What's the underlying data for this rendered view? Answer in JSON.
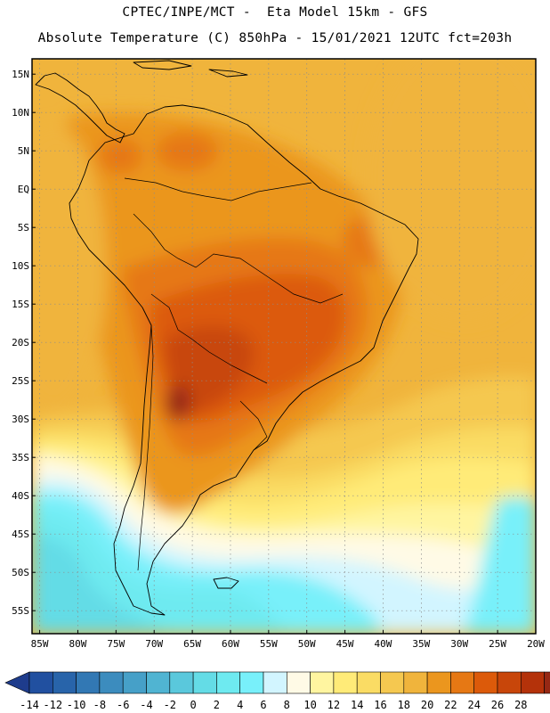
{
  "header": {
    "line1": "CPTEC/INPE/MCT -  Eta Model 15km - GFS",
    "line2": "Absolute Temperature (C) 850hPa - 15/01/2021 12UTC fct=203h"
  },
  "map": {
    "lon_range": [
      -86,
      -20
    ],
    "lat_range": [
      -58,
      17
    ],
    "lon_ticks": [
      {
        "value": -85,
        "label": "85W"
      },
      {
        "value": -80,
        "label": "80W"
      },
      {
        "value": -75,
        "label": "75W"
      },
      {
        "value": -70,
        "label": "70W"
      },
      {
        "value": -65,
        "label": "65W"
      },
      {
        "value": -60,
        "label": "60W"
      },
      {
        "value": -55,
        "label": "55W"
      },
      {
        "value": -50,
        "label": "50W"
      },
      {
        "value": -45,
        "label": "45W"
      },
      {
        "value": -40,
        "label": "40W"
      },
      {
        "value": -35,
        "label": "35W"
      },
      {
        "value": -30,
        "label": "30W"
      },
      {
        "value": -25,
        "label": "25W"
      },
      {
        "value": -20,
        "label": "20W"
      }
    ],
    "lat_ticks": [
      {
        "value": 15,
        "label": "15N"
      },
      {
        "value": 10,
        "label": "10N"
      },
      {
        "value": 5,
        "label": "5N"
      },
      {
        "value": 0,
        "label": "EQ"
      },
      {
        "value": -5,
        "label": "5S"
      },
      {
        "value": -10,
        "label": "10S"
      },
      {
        "value": -15,
        "label": "15S"
      },
      {
        "value": -20,
        "label": "20S"
      },
      {
        "value": -25,
        "label": "25S"
      },
      {
        "value": -30,
        "label": "30S"
      },
      {
        "value": -35,
        "label": "35S"
      },
      {
        "value": -40,
        "label": "40S"
      },
      {
        "value": -45,
        "label": "45S"
      },
      {
        "value": -50,
        "label": "50S"
      },
      {
        "value": -55,
        "label": "55S"
      }
    ]
  },
  "colorbar": {
    "units": "C",
    "labels": [
      "-14",
      "-12",
      "-10",
      "-8",
      "-6",
      "-4",
      "-2",
      "0",
      "2",
      "4",
      "6",
      "8",
      "10",
      "12",
      "14",
      "16",
      "18",
      "20",
      "22",
      "24",
      "26",
      "28"
    ],
    "colors": [
      "#1e3c8c",
      "#2150a0",
      "#2864aa",
      "#3278b4",
      "#3c8cbe",
      "#46a0c8",
      "#50b4d2",
      "#5ac8dc",
      "#64dce6",
      "#6eeaf0",
      "#78f0fa",
      "#d2f5ff",
      "#fffae6",
      "#fff5a0",
      "#ffeb78",
      "#fadc64",
      "#f5c850",
      "#f0b43c",
      "#eb961e",
      "#e67814",
      "#dc5a0a",
      "#c8460a",
      "#b4320a",
      "#962814",
      "#7d1e14",
      "#641414"
    ]
  },
  "fields": {
    "bands": [
      {
        "range": "6-8",
        "color": "#d2f5ff"
      },
      {
        "range": "8-10",
        "color": "#fffae6"
      },
      {
        "range": "10-12",
        "color": "#fff5a0"
      },
      {
        "range": "12-14",
        "color": "#ffeb78"
      },
      {
        "range": "14-16",
        "color": "#fadc64"
      },
      {
        "range": "16-18",
        "color": "#f5c850"
      },
      {
        "range": "18-20",
        "color": "#f0b43c"
      },
      {
        "range": "20-22",
        "color": "#eb961e"
      },
      {
        "range": "22-24",
        "color": "#e67814"
      },
      {
        "range": "24-26",
        "color": "#dc5a0a"
      },
      {
        "range": "26-28",
        "color": "#c8460a"
      },
      {
        "range": "28+",
        "color": "#962814"
      },
      {
        "range": "4-6",
        "color": "#78f0fa"
      },
      {
        "range": "2-4",
        "color": "#6eeaf0"
      },
      {
        "range": "0-2",
        "color": "#64dce6"
      }
    ]
  }
}
